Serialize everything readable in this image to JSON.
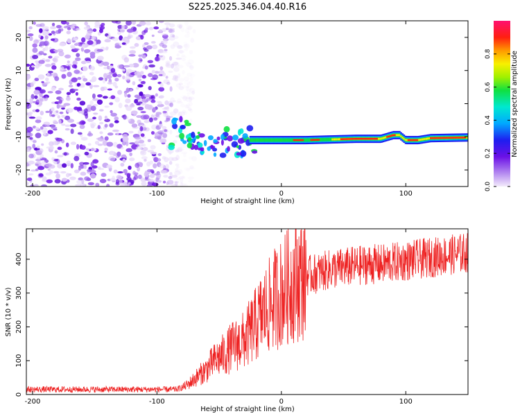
{
  "title": "S225.2025.346.04.40.R16",
  "chart_data": [
    {
      "type": "heatmap",
      "xlabel": "Height of straight line (km)",
      "ylabel": "Frequency (Hz)",
      "xlim": [
        -205,
        150
      ],
      "ylim": [
        -25,
        25
      ],
      "xticks": [
        -200,
        -100,
        0,
        100
      ],
      "yticks": [
        -20,
        -10,
        0,
        10,
        20
      ],
      "colorbar": {
        "label": "Normalized spectral amplitude",
        "range": [
          0.0,
          1.0
        ],
        "ticks": [
          0.0,
          0.2,
          0.4,
          0.6,
          0.8
        ],
        "tick_labels": [
          "0.0",
          "0.2",
          "0.4",
          "0.6",
          "0.8"
        ]
      },
      "features": {
        "noise_region_x": [
          -205,
          -80
        ],
        "carrier_start_x": -80,
        "carrier_track": {
          "x": [
            -88,
            -80,
            -72,
            -65,
            -58,
            -52,
            -46,
            -40,
            -35,
            -30,
            -25,
            -20,
            -10,
            0,
            20,
            40,
            60,
            80,
            90,
            95,
            100,
            110,
            120,
            135,
            150
          ],
          "freq_hz": [
            -5,
            -8,
            -11,
            -12,
            -13,
            -11,
            -12,
            -10,
            -12,
            -12,
            -11,
            -11,
            -11,
            -11,
            -11,
            -10.8,
            -10.6,
            -10.6,
            -9.5,
            -9.5,
            -11,
            -11,
            -10.4,
            -10.3,
            -10.2
          ]
        }
      }
    },
    {
      "type": "line",
      "xlabel": "Height of straight line (km)",
      "ylabel": "SNR (10 * v/v)",
      "xlim": [
        -205,
        150
      ],
      "ylim": [
        0,
        490
      ],
      "xticks": [
        -200,
        -100,
        0,
        100
      ],
      "yticks": [
        0,
        100,
        200,
        300,
        400
      ],
      "color": "#ee2222",
      "series": [
        {
          "name": "SNR",
          "x": [
            -205,
            -180,
            -150,
            -120,
            -100,
            -85,
            -80,
            -75,
            -70,
            -65,
            -60,
            -55,
            -50,
            -45,
            -40,
            -35,
            -30,
            -25,
            -20,
            -15,
            -10,
            -5,
            0,
            5,
            10,
            15,
            20,
            25,
            30,
            40,
            50,
            60,
            70,
            80,
            90,
            100,
            110,
            120,
            130,
            140,
            150
          ],
          "values": [
            15,
            15,
            15,
            15,
            15,
            15,
            20,
            30,
            45,
            60,
            75,
            95,
            110,
            120,
            140,
            150,
            160,
            185,
            210,
            240,
            260,
            285,
            300,
            320,
            335,
            345,
            350,
            355,
            360,
            370,
            375,
            380,
            385,
            385,
            390,
            395,
            400,
            405,
            410,
            415,
            420
          ]
        }
      ]
    }
  ]
}
